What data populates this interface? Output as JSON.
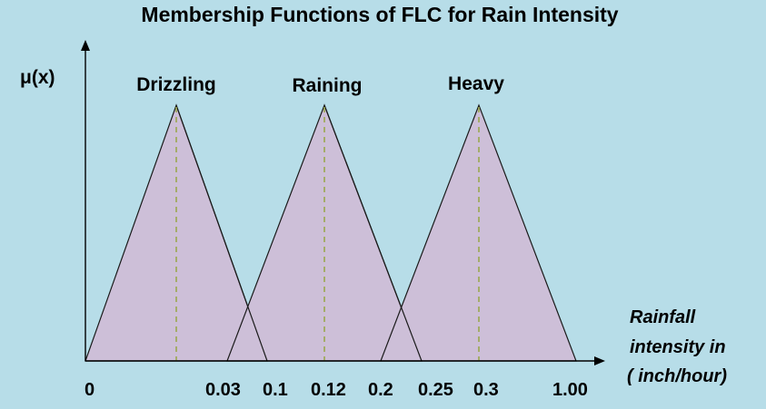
{
  "title": "Membership Functions of FLC for Rain Intensity",
  "y_axis_label": "μ(x)",
  "x_axis_label": [
    "Rainfall",
    "intensity in",
    "( inch/hour)"
  ],
  "tick_labels": [
    "0",
    "0.03",
    "0.1",
    "0.12",
    "0.2",
    "0.25",
    "0.3",
    "1.00"
  ],
  "membership_functions": [
    {
      "name": "Drizzling",
      "points": [
        "0",
        "0.1"
      ]
    },
    {
      "name": "Raining",
      "points": [
        "0.03",
        "0.12",
        "0.2"
      ]
    },
    {
      "name": "Heavy",
      "points": [
        "0.2",
        "0.3",
        "1.00"
      ]
    }
  ],
  "colors": {
    "background": "#b7dde8",
    "fill": "#cdbfd8",
    "dashed_peak_line": "#9aa84e"
  }
}
